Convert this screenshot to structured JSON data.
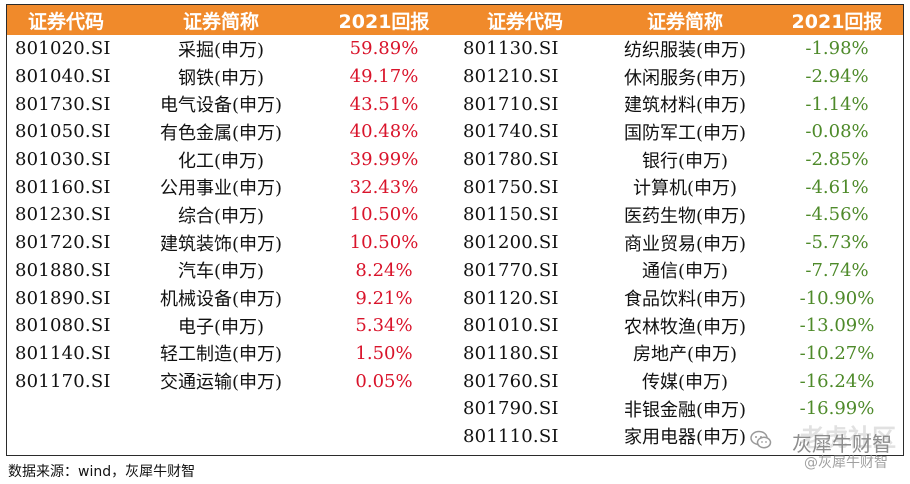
{
  "headers": {
    "code": "证券代码",
    "name": "证券简称",
    "ret": "2021回报"
  },
  "left_rows": [
    {
      "code": "801020.SI",
      "name": "采掘(申万)",
      "ret": "59.89%"
    },
    {
      "code": "801040.SI",
      "name": "钢铁(申万)",
      "ret": "49.17%"
    },
    {
      "code": "801730.SI",
      "name": "电气设备(申万)",
      "ret": "43.51%"
    },
    {
      "code": "801050.SI",
      "name": "有色金属(申万)",
      "ret": "40.48%"
    },
    {
      "code": "801030.SI",
      "name": "化工(申万)",
      "ret": "39.99%"
    },
    {
      "code": "801160.SI",
      "name": "公用事业(申万)",
      "ret": "32.43%"
    },
    {
      "code": "801230.SI",
      "name": "综合(申万)",
      "ret": "10.50%"
    },
    {
      "code": "801720.SI",
      "name": "建筑装饰(申万)",
      "ret": "10.50%"
    },
    {
      "code": "801880.SI",
      "name": "汽车(申万)",
      "ret": "8.24%"
    },
    {
      "code": "801890.SI",
      "name": "机械设备(申万)",
      "ret": "9.21%"
    },
    {
      "code": "801080.SI",
      "name": "电子(申万)",
      "ret": "5.34%"
    },
    {
      "code": "801140.SI",
      "name": "轻工制造(申万)",
      "ret": "1.50%"
    },
    {
      "code": "801170.SI",
      "name": "交通运输(申万)",
      "ret": "0.05%"
    }
  ],
  "right_rows": [
    {
      "code": "801130.SI",
      "name": "纺织服装(申万)",
      "ret": "-1.98%"
    },
    {
      "code": "801210.SI",
      "name": "休闲服务(申万)",
      "ret": "-2.94%"
    },
    {
      "code": "801710.SI",
      "name": "建筑材料(申万)",
      "ret": "-1.14%"
    },
    {
      "code": "801740.SI",
      "name": "国防军工(申万)",
      "ret": "-0.08%"
    },
    {
      "code": "801780.SI",
      "name": "银行(申万)",
      "ret": "-2.85%"
    },
    {
      "code": "801750.SI",
      "name": "计算机(申万)",
      "ret": "-4.61%"
    },
    {
      "code": "801150.SI",
      "name": "医药生物(申万)",
      "ret": "-4.56%"
    },
    {
      "code": "801200.SI",
      "name": "商业贸易(申万)",
      "ret": "-5.73%"
    },
    {
      "code": "801770.SI",
      "name": "通信(申万)",
      "ret": "-7.74%"
    },
    {
      "code": "801120.SI",
      "name": "食品饮料(申万)",
      "ret": "-10.90%"
    },
    {
      "code": "801010.SI",
      "name": "农林牧渔(申万)",
      "ret": "-13.09%"
    },
    {
      "code": "801180.SI",
      "name": "房地产(申万)",
      "ret": "-10.27%"
    },
    {
      "code": "801760.SI",
      "name": "传媒(申万)",
      "ret": "-16.24%"
    },
    {
      "code": "801790.SI",
      "name": "非银金融(申万)",
      "ret": "-16.99%"
    },
    {
      "code": "801110.SI",
      "name": "家用电器(申万)",
      "ret": ""
    }
  ],
  "source": "数据来源：wind，灰犀牛财智",
  "watermark": {
    "top": "老虎社区",
    "name": "灰犀牛财智",
    "handle": "@灰犀牛财智",
    "icon": "wechat-icon"
  },
  "colors": {
    "header_bg": "#f08a2b",
    "positive": "#d9142b",
    "negative": "#4e8a2a"
  }
}
